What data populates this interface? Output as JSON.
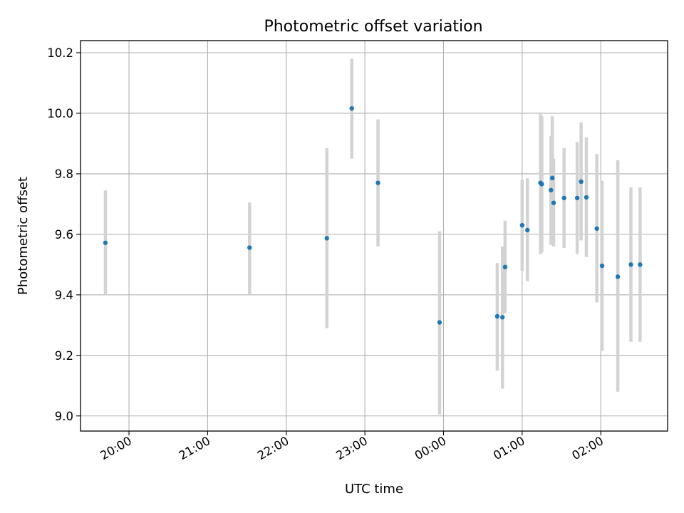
{
  "chart_data": {
    "type": "scatter",
    "title": "Photometric offset variation",
    "xlabel": "UTC time",
    "ylabel": "Photometric offset",
    "x_tick_labels": [
      "20:00",
      "21:00",
      "22:00",
      "23:00",
      "00:00",
      "01:00",
      "02:00"
    ],
    "y_tick_labels": [
      "9.0",
      "9.2",
      "9.4",
      "9.6",
      "9.8",
      "10.0",
      "10.2"
    ],
    "grid": true,
    "xlim": [
      "19:23",
      "02:51"
    ],
    "ylim": [
      8.95,
      10.24
    ],
    "colors": {
      "points": "#1f77b4",
      "errorbars": "#d3d3d3",
      "grid": "#b0b0b0"
    },
    "points": [
      {
        "x": "19:42",
        "y": 9.572,
        "y_low": 9.4,
        "y_high": 9.745
      },
      {
        "x": "21:32",
        "y": 9.556,
        "y_low": 9.4,
        "y_high": 9.705
      },
      {
        "x": "22:31",
        "y": 9.587,
        "y_low": 9.29,
        "y_high": 9.885
      },
      {
        "x": "22:50",
        "y": 10.016,
        "y_low": 9.85,
        "y_high": 10.18
      },
      {
        "x": "23:10",
        "y": 9.77,
        "y_low": 9.56,
        "y_high": 9.98
      },
      {
        "x": "23:57",
        "y": 9.309,
        "y_low": 9.005,
        "y_high": 9.61
      },
      {
        "x": "00:41",
        "y": 9.329,
        "y_low": 9.15,
        "y_high": 9.505
      },
      {
        "x": "00:45",
        "y": 9.326,
        "y_low": 9.09,
        "y_high": 9.56
      },
      {
        "x": "00:47",
        "y": 9.492,
        "y_low": 9.34,
        "y_high": 9.645
      },
      {
        "x": "01:00",
        "y": 9.63,
        "y_low": 9.48,
        "y_high": 9.78
      },
      {
        "x": "01:04",
        "y": 9.614,
        "y_low": 9.445,
        "y_high": 9.785
      },
      {
        "x": "01:14",
        "y": 9.77,
        "y_low": 9.535,
        "y_high": 10.0
      },
      {
        "x": "01:15",
        "y": 9.766,
        "y_low": 9.54,
        "y_high": 9.99
      },
      {
        "x": "01:22",
        "y": 9.746,
        "y_low": 9.565,
        "y_high": 9.925
      },
      {
        "x": "01:23",
        "y": 9.786,
        "y_low": 9.58,
        "y_high": 9.99
      },
      {
        "x": "01:24",
        "y": 9.704,
        "y_low": 9.56,
        "y_high": 9.85
      },
      {
        "x": "01:32",
        "y": 9.72,
        "y_low": 9.555,
        "y_high": 9.885
      },
      {
        "x": "01:42",
        "y": 9.72,
        "y_low": 9.535,
        "y_high": 9.905
      },
      {
        "x": "01:45",
        "y": 9.774,
        "y_low": 9.58,
        "y_high": 9.97
      },
      {
        "x": "01:49",
        "y": 9.722,
        "y_low": 9.525,
        "y_high": 9.92
      },
      {
        "x": "01:57",
        "y": 9.619,
        "y_low": 9.375,
        "y_high": 9.865
      },
      {
        "x": "02:01",
        "y": 9.496,
        "y_low": 9.215,
        "y_high": 9.777
      },
      {
        "x": "02:13",
        "y": 9.46,
        "y_low": 9.08,
        "y_high": 9.845
      },
      {
        "x": "02:23",
        "y": 9.5,
        "y_low": 9.245,
        "y_high": 9.755
      },
      {
        "x": "02:30",
        "y": 9.5,
        "y_low": 9.245,
        "y_high": 9.755
      }
    ]
  }
}
